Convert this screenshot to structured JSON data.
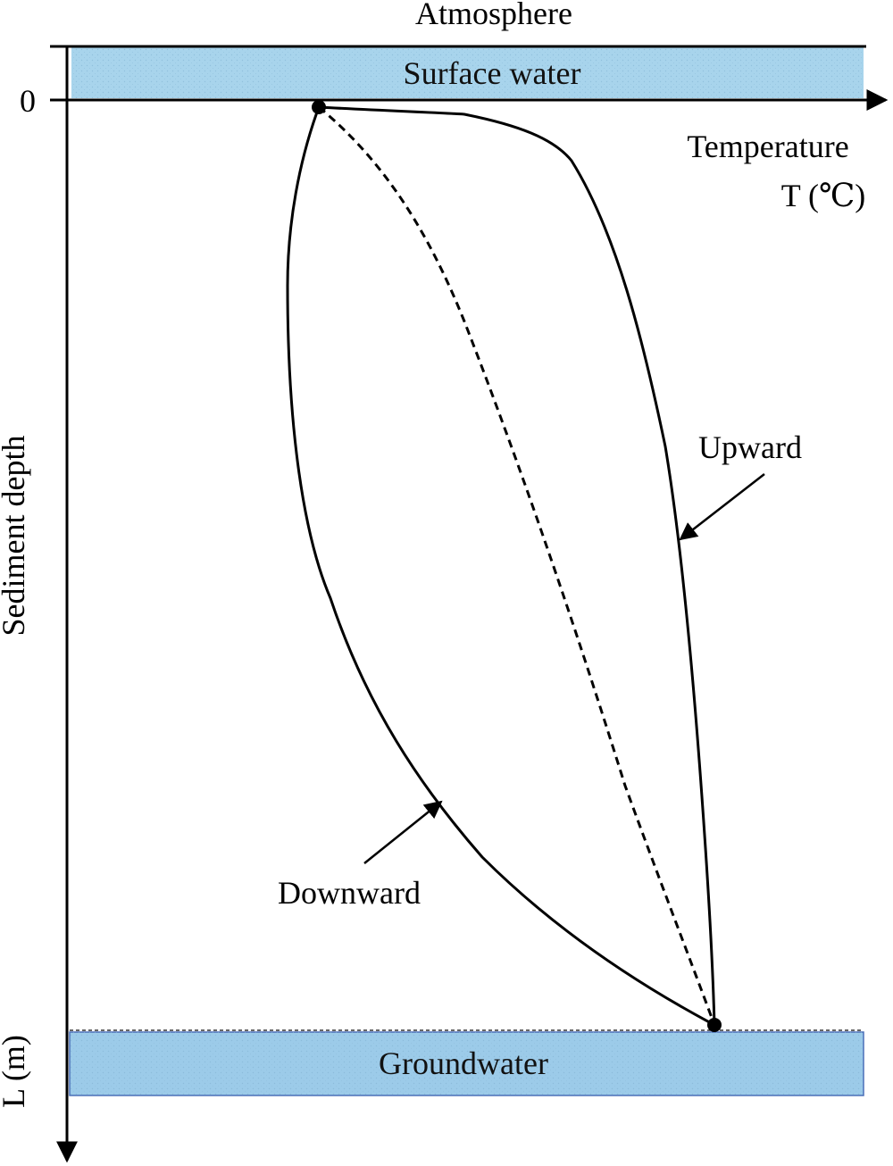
{
  "labels": {
    "atmosphere": "Atmosphere",
    "surface_water": "Surface water",
    "groundwater": "Groundwater",
    "zero": "0",
    "temperature": "Temperature",
    "temperature_unit": "T (℃)",
    "sediment_depth": "Sediment depth",
    "depth_bottom": "L (m)",
    "upward": "Upward",
    "downward": "Downward"
  },
  "colors": {
    "water_fill": "#a8d4ec",
    "groundwater_fill": "#9ccbe9",
    "groundwater_border": "#4a6fb8",
    "line": "#000000"
  },
  "profiles": [
    {
      "name": "Upward",
      "style": "solid"
    },
    {
      "name": "Downward",
      "style": "solid"
    },
    {
      "name": "",
      "style": "dashed"
    }
  ]
}
